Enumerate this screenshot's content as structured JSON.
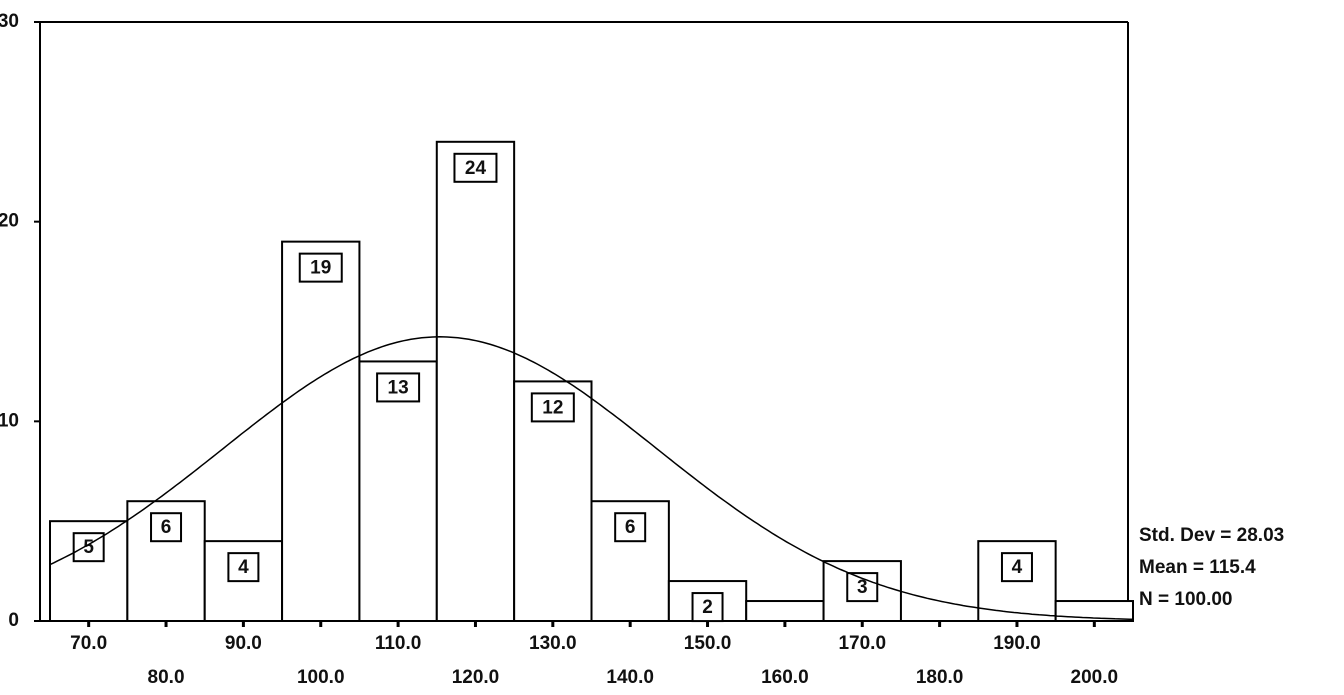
{
  "chart_data": {
    "type": "histogram",
    "bins": [
      65,
      75,
      85,
      95,
      105,
      115,
      125,
      135,
      145,
      155,
      165,
      175,
      185,
      195,
      205
    ],
    "values": [
      5,
      6,
      4,
      19,
      13,
      24,
      12,
      6,
      2,
      1,
      3,
      0,
      4,
      1
    ],
    "value_labels": [
      "5",
      "6",
      "4",
      "19",
      "13",
      "24",
      "12",
      "6",
      "2",
      null,
      "3",
      null,
      "4",
      null
    ],
    "color": "#ffffff",
    "xlim": [
      65,
      205
    ],
    "ylim": [
      0,
      30
    ],
    "xticks": [
      {
        "value": 70,
        "label": "70.0"
      },
      {
        "value": 80,
        "label": "80.0"
      },
      {
        "value": 90,
        "label": "90.0"
      },
      {
        "value": 100,
        "label": "100.0"
      },
      {
        "value": 110,
        "label": "110.0"
      },
      {
        "value": 120,
        "label": "120.0"
      },
      {
        "value": 130,
        "label": "130.0"
      },
      {
        "value": 140,
        "label": "140.0"
      },
      {
        "value": 150,
        "label": "150.0"
      },
      {
        "value": 160,
        "label": "160.0"
      },
      {
        "value": 170,
        "label": "170.0"
      },
      {
        "value": 180,
        "label": "180.0"
      },
      {
        "value": 190,
        "label": "190.0"
      },
      {
        "value": 200,
        "label": "200.0"
      }
    ],
    "yticks": [
      0,
      10,
      20,
      30
    ],
    "normal_curve": {
      "mean": 115.4,
      "std_dev": 28.03,
      "n": 100
    },
    "stats": [
      "Std. Dev = 28.03",
      "Mean = 115.4",
      "N = 100.00"
    ]
  }
}
